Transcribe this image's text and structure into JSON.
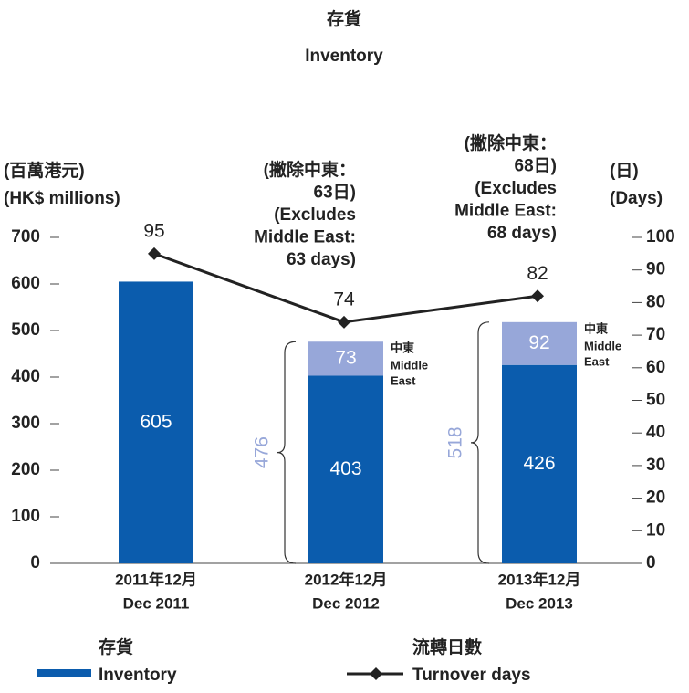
{
  "chart_data": {
    "type": "bar_line",
    "title": "存貨",
    "subtitle": "Inventory",
    "y_label": [
      "(百萬港元)",
      "(HK$ millions)"
    ],
    "y2_label": [
      "(日)",
      "(Days)"
    ],
    "categories": [
      "2011年12月",
      "2012年12月",
      "2013年12月"
    ],
    "categories_en": [
      "Dec 2011",
      "Dec 2012",
      "Dec 2013"
    ],
    "ylim": [
      0,
      700
    ],
    "yticks": [
      0,
      100,
      200,
      300,
      400,
      500,
      600,
      700
    ],
    "y2lim": [
      0,
      100
    ],
    "y2ticks": [
      0,
      10,
      20,
      30,
      40,
      50,
      60,
      70,
      80,
      90,
      100
    ],
    "series": [
      {
        "name": "Inventory",
        "name_zh": "存貨",
        "type": "bar",
        "color": "#0b5cad",
        "values": [
          605,
          403,
          426
        ]
      },
      {
        "name": [
          "Middle",
          "East"
        ],
        "name_zh": "中東",
        "type": "bar",
        "color": "#97a7d9",
        "values": [
          null,
          73,
          92
        ]
      },
      {
        "name": "Turnover days",
        "name_zh": "流轉日數",
        "type": "line",
        "axis": "y2",
        "color": "#222222",
        "values": [
          95,
          74,
          82
        ]
      }
    ],
    "totals": [
      null,
      476,
      518
    ],
    "annotations": [
      null,
      [
        "(撇除中東：",
        "63日)",
        "(Excludes",
        "Middle East:",
        "63 days)"
      ],
      [
        "(撇除中東：",
        "68日)",
        "(Excludes",
        "Middle East:",
        "68 days)"
      ]
    ]
  }
}
